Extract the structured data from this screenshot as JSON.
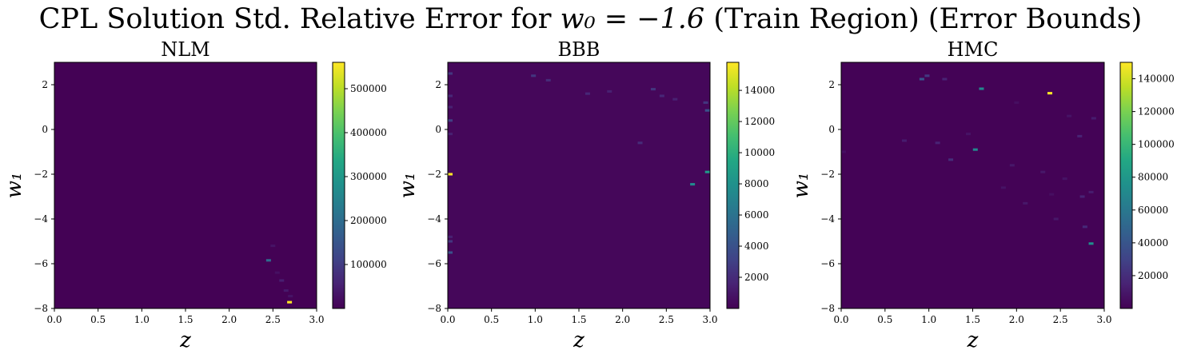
{
  "figure": {
    "title_prefix": "CPL Solution Std. Relative Error for ",
    "title_math": "w₀ = −1.6",
    "title_suffix": " (Train Region) (Error Bounds)"
  },
  "chart_data": [
    {
      "type": "heatmap",
      "title": "NLM",
      "xlabel": "z",
      "ylabel": "w₁",
      "xlim": [
        0.0,
        3.0
      ],
      "ylim": [
        -8,
        3
      ],
      "xticks": [
        "0.0",
        "0.5",
        "1.0",
        "1.5",
        "2.0",
        "2.5",
        "3.0"
      ],
      "yticks": [
        "−8",
        "−6",
        "−4",
        "−2",
        "0",
        "2"
      ],
      "colormap": "viridis",
      "colorbar_range": [
        0,
        560000
      ],
      "colorbar_ticks": [
        "100000",
        "200000",
        "300000",
        "400000",
        "500000"
      ],
      "background_value": 1000,
      "hot_cells": [
        {
          "z": 2.69,
          "w1": -7.72,
          "value": 560000
        },
        {
          "z": 2.45,
          "w1": -5.85,
          "value": 200000
        },
        {
          "z": 2.6,
          "w1": -6.75,
          "value": 50000
        },
        {
          "z": 2.65,
          "w1": -7.2,
          "value": 40000
        },
        {
          "z": 2.5,
          "w1": -5.2,
          "value": 30000
        },
        {
          "z": 2.55,
          "w1": -6.4,
          "value": 25000
        },
        {
          "z": 2.7,
          "w1": -7.45,
          "value": 30000
        }
      ]
    },
    {
      "type": "heatmap",
      "title": "BBB",
      "xlabel": "z",
      "ylabel": "w₁",
      "xlim": [
        0.0,
        3.0
      ],
      "ylim": [
        -8,
        3
      ],
      "xticks": [
        "0.0",
        "0.5",
        "1.0",
        "1.5",
        "2.0",
        "2.5",
        "3.0"
      ],
      "yticks": [
        "−8",
        "−6",
        "−4",
        "−2",
        "0",
        "2"
      ],
      "colormap": "viridis",
      "colorbar_range": [
        0,
        15800
      ],
      "colorbar_ticks": [
        "2000",
        "4000",
        "6000",
        "8000",
        "10000",
        "12000",
        "14000"
      ],
      "background_value": 300,
      "hot_cells": [
        {
          "z": 0.02,
          "w1": -2.0,
          "value": 15800
        },
        {
          "z": 2.97,
          "w1": -1.9,
          "value": 8500
        },
        {
          "z": 2.8,
          "w1": -2.45,
          "value": 7500
        },
        {
          "z": 2.97,
          "w1": 0.85,
          "value": 4000
        },
        {
          "z": 0.02,
          "w1": -5.5,
          "value": 4000
        },
        {
          "z": 0.02,
          "w1": 0.4,
          "value": 3000
        },
        {
          "z": 0.02,
          "w1": -5.0,
          "value": 2500
        },
        {
          "z": 0.02,
          "w1": 2.5,
          "value": 2500
        },
        {
          "z": 0.98,
          "w1": 2.4,
          "value": 2500
        },
        {
          "z": 2.35,
          "w1": 1.8,
          "value": 2500
        },
        {
          "z": 2.95,
          "w1": 1.2,
          "value": 2500
        },
        {
          "z": 1.15,
          "w1": 2.2,
          "value": 2000
        },
        {
          "z": 2.2,
          "w1": -0.6,
          "value": 2000
        },
        {
          "z": 0.02,
          "w1": 1.5,
          "value": 1800
        },
        {
          "z": 0.02,
          "w1": 1.0,
          "value": 1500
        },
        {
          "z": 1.6,
          "w1": 1.6,
          "value": 1800
        },
        {
          "z": 2.45,
          "w1": 1.5,
          "value": 1800
        },
        {
          "z": 2.6,
          "w1": 1.35,
          "value": 1500
        },
        {
          "z": 1.85,
          "w1": 1.7,
          "value": 1500
        },
        {
          "z": 0.02,
          "w1": -4.8,
          "value": 1500
        },
        {
          "z": 0.02,
          "w1": -0.2,
          "value": 1500
        }
      ]
    },
    {
      "type": "heatmap",
      "title": "HMC",
      "xlabel": "z",
      "ylabel": "w₁",
      "xlim": [
        0.0,
        3.0
      ],
      "ylim": [
        -8,
        3
      ],
      "xticks": [
        "0.0",
        "0.5",
        "1.0",
        "1.5",
        "2.0",
        "2.5",
        "3.0"
      ],
      "yticks": [
        "−8",
        "−6",
        "−4",
        "−2",
        "0",
        "2"
      ],
      "colormap": "viridis",
      "colorbar_range": [
        0,
        150000
      ],
      "colorbar_ticks": [
        "20000",
        "40000",
        "60000",
        "80000",
        "100000",
        "120000",
        "140000"
      ],
      "background_value": 1000,
      "hot_cells": [
        {
          "z": 2.38,
          "w1": 1.62,
          "value": 150000
        },
        {
          "z": 1.53,
          "w1": -0.9,
          "value": 70000
        },
        {
          "z": 1.6,
          "w1": 1.82,
          "value": 70000
        },
        {
          "z": 2.85,
          "w1": -5.1,
          "value": 75000
        },
        {
          "z": 0.92,
          "w1": 2.25,
          "value": 40000
        },
        {
          "z": 0.98,
          "w1": 2.4,
          "value": 25000
        },
        {
          "z": 1.18,
          "w1": 2.25,
          "value": 15000
        },
        {
          "z": 0.72,
          "w1": -0.5,
          "value": 12000
        },
        {
          "z": 1.1,
          "w1": -0.6,
          "value": 15000
        },
        {
          "z": 1.25,
          "w1": -1.35,
          "value": 20000
        },
        {
          "z": 2.75,
          "w1": -3.0,
          "value": 15000
        },
        {
          "z": 2.85,
          "w1": -2.8,
          "value": 12000
        },
        {
          "z": 2.78,
          "w1": -4.35,
          "value": 18000
        },
        {
          "z": 2.72,
          "w1": -0.3,
          "value": 15000
        },
        {
          "z": 2.88,
          "w1": 0.5,
          "value": 12000
        },
        {
          "z": 1.95,
          "w1": -1.6,
          "value": 10000
        },
        {
          "z": 2.1,
          "w1": -3.3,
          "value": 10000
        },
        {
          "z": 2.3,
          "w1": -1.9,
          "value": 10000
        },
        {
          "z": 2.45,
          "w1": -4.0,
          "value": 10000
        },
        {
          "z": 1.85,
          "w1": -2.6,
          "value": 8000
        },
        {
          "z": 2.55,
          "w1": -2.2,
          "value": 8000
        },
        {
          "z": 1.45,
          "w1": -0.2,
          "value": 8000
        },
        {
          "z": 2.6,
          "w1": 0.6,
          "value": 8000
        },
        {
          "z": 2.0,
          "w1": 1.2,
          "value": 6000
        },
        {
          "z": 0.02,
          "w1": -1.0,
          "value": 6000
        },
        {
          "z": 2.4,
          "w1": -2.9,
          "value": 6000
        }
      ]
    }
  ]
}
